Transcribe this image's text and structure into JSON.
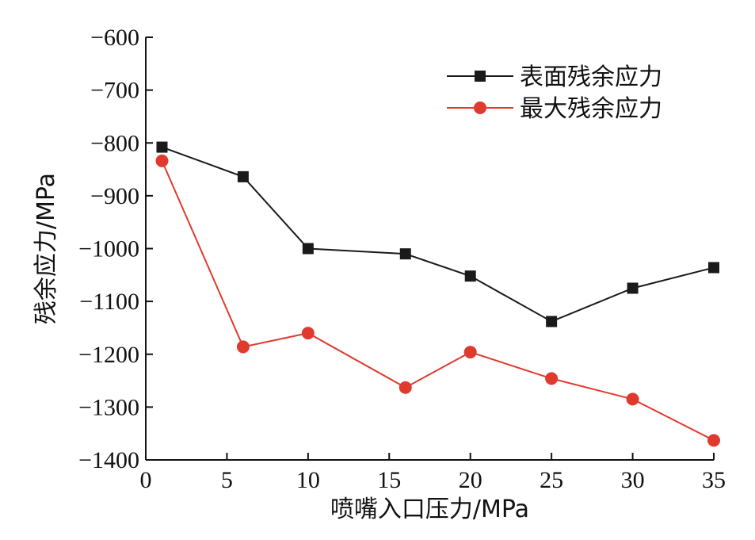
{
  "chart_data": {
    "type": "line",
    "x": [
      1,
      6,
      10,
      16,
      20,
      25,
      30,
      35
    ],
    "series": [
      {
        "name": "表面残余应力",
        "marker": "square",
        "color": "#1a1a1a",
        "values": [
          -808,
          -864,
          -1000,
          -1010,
          -1052,
          -1138,
          -1075,
          -1036
        ]
      },
      {
        "name": "最大残余应力",
        "marker": "circle",
        "color": "#e03a2f",
        "values": [
          -834,
          -1186,
          -1160,
          -1263,
          -1196,
          -1246,
          -1285,
          -1363
        ]
      }
    ],
    "xlabel": "喷嘴入口压力/MPa",
    "ylabel": "残余应力/MPa",
    "xlim": [
      0,
      35
    ],
    "ylim": [
      -1400,
      -600
    ],
    "xticks": [
      0,
      5,
      10,
      15,
      20,
      25,
      30,
      35
    ],
    "yticks": [
      -600,
      -700,
      -800,
      -900,
      -1000,
      -1100,
      -1200,
      -1300,
      -1400
    ],
    "xtick_labels": [
      "0",
      "5",
      "10",
      "15",
      "20",
      "25",
      "30",
      "35"
    ],
    "ytick_labels": [
      "−600",
      "−700",
      "−800",
      "−900",
      "−1000",
      "−1100",
      "−1200",
      "−1300",
      "−1400"
    ],
    "grid": false,
    "legend_position": "top-right"
  }
}
